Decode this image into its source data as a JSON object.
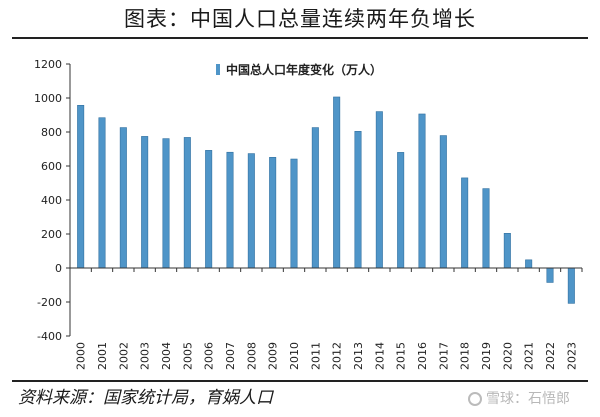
{
  "title": "图表：中国人口总量连续两年负增长",
  "source": "资料来源：国家统计局，育娲人口",
  "watermark": "雪球：石悟郎",
  "colors": {
    "bar_fill": "#4f95c8",
    "bar_edge": "#2f6f9f",
    "axis": "#333333",
    "rule": "#222222"
  },
  "chart_data": {
    "type": "bar",
    "title": "",
    "xlabel": "",
    "ylabel": "",
    "ylim": [
      -400,
      1200
    ],
    "yticks": [
      -400,
      -200,
      0,
      200,
      400,
      600,
      800,
      1000,
      1200
    ],
    "grid": false,
    "legend_position": "top-center",
    "categories": [
      "2000",
      "2001",
      "2002",
      "2003",
      "2004",
      "2005",
      "2006",
      "2007",
      "2008",
      "2009",
      "2010",
      "2011",
      "2012",
      "2013",
      "2014",
      "2015",
      "2016",
      "2017",
      "2018",
      "2019",
      "2020",
      "2021",
      "2022",
      "2023"
    ],
    "series": [
      {
        "name": "中国总人口年度变化（万人）",
        "values": [
          957,
          884,
          826,
          774,
          761,
          768,
          692,
          681,
          673,
          651,
          641,
          826,
          1006,
          804,
          920,
          680,
          906,
          779,
          530,
          467,
          204,
          48,
          -85,
          -208
        ]
      }
    ]
  }
}
